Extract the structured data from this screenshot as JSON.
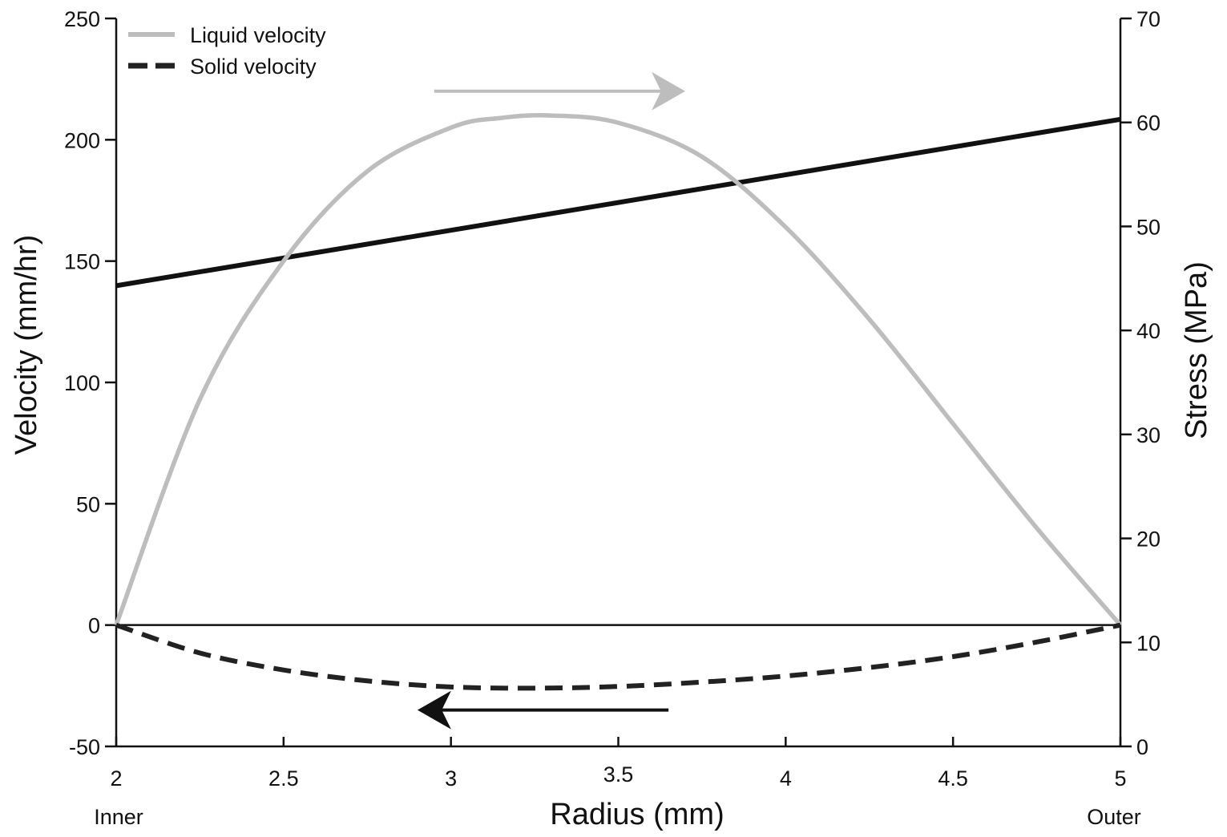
{
  "chart_data": {
    "type": "line",
    "xlabel": "Radius (mm)",
    "ylabel": "Velocity (mm/hr)",
    "y2label": "Stress (MPa)",
    "xlim": [
      2,
      5
    ],
    "ylim": [
      -50,
      250
    ],
    "y2lim": [
      0,
      70
    ],
    "x_ticks": [
      "2",
      "2.5",
      "3",
      "3.5",
      "4",
      "4.5",
      "5"
    ],
    "x_tick_values": [
      2,
      2.5,
      3,
      3.5,
      4,
      4.5,
      5
    ],
    "y_ticks": [
      "-50",
      "0",
      "50",
      "100",
      "150",
      "200",
      "250"
    ],
    "y_tick_values": [
      -50,
      0,
      50,
      100,
      150,
      200,
      250
    ],
    "y2_ticks": [
      "0",
      "10",
      "20",
      "30",
      "40",
      "50",
      "60",
      "70"
    ],
    "y2_tick_values": [
      0,
      10,
      20,
      30,
      40,
      50,
      60,
      70
    ],
    "edge_labels": {
      "inner": "Inner",
      "outer": "Outer"
    },
    "legend_position": "top-left",
    "zero_line": true,
    "grid": false,
    "series": [
      {
        "name": "Liquid velocity",
        "axis": "left",
        "color": "#bdbdbd",
        "style": "solid",
        "x": [
          2.0,
          2.25,
          2.5,
          2.75,
          3.0,
          3.15,
          3.3,
          3.5,
          3.75,
          4.0,
          4.25,
          4.5,
          4.75,
          5.0
        ],
        "y": [
          0,
          93,
          150,
          187,
          205,
          209,
          210,
          207,
          193,
          164,
          126,
          83,
          40,
          0
        ]
      },
      {
        "name": "Solid velocity",
        "axis": "left",
        "color": "#222222",
        "style": "dashed",
        "x": [
          2.0,
          2.25,
          2.5,
          2.75,
          3.0,
          3.25,
          3.5,
          3.75,
          4.0,
          4.25,
          4.5,
          4.75,
          5.0
        ],
        "y": [
          0,
          -11.5,
          -18.5,
          -23,
          -25.5,
          -26,
          -25.3,
          -23.5,
          -21,
          -17.5,
          -13,
          -7,
          0
        ]
      },
      {
        "axis": "right",
        "color": "#111111",
        "style": "solid",
        "x": [
          2.0,
          5.0
        ],
        "y": [
          44.3,
          60.3
        ]
      }
    ],
    "arrows": [
      {
        "color": "#bdbdbd",
        "direction": "right",
        "x": [
          2.95,
          3.7
        ],
        "y": 220
      },
      {
        "color": "#111111",
        "direction": "left",
        "x": [
          3.65,
          2.9
        ],
        "y": -35
      }
    ]
  }
}
